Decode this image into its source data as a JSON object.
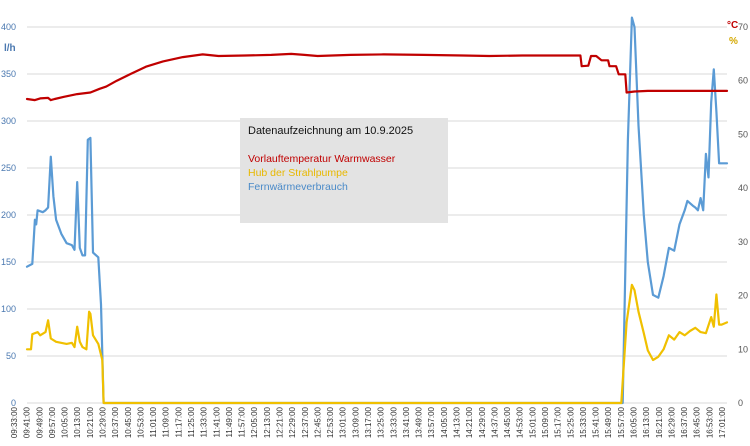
{
  "chart_data": {
    "type": "line",
    "title": "Datenaufzeichnung am 10.9.2025",
    "y_left": {
      "unit": "l/h",
      "range": [
        0,
        400
      ],
      "ticks": [
        0,
        50,
        100,
        150,
        200,
        250,
        300,
        350,
        400
      ]
    },
    "y_right": {
      "units": [
        "°C",
        "%"
      ],
      "range": [
        0,
        70
      ],
      "ticks": [
        0,
        10,
        20,
        30,
        40,
        50,
        60,
        70
      ]
    },
    "x_labels": [
      "09:33:00",
      "09:41:00",
      "09:49:00",
      "09:57:00",
      "10:05:00",
      "10:13:00",
      "10:21:00",
      "10:29:00",
      "10:37:00",
      "10:45:00",
      "10:53:00",
      "11:01:00",
      "11:09:00",
      "11:17:00",
      "11:25:00",
      "11:33:00",
      "11:41:00",
      "11:49:00",
      "11:57:00",
      "12:05:00",
      "12:13:00",
      "12:21:00",
      "12:29:00",
      "12:37:00",
      "12:45:00",
      "12:53:00",
      "13:01:00",
      "13:09:00",
      "13:17:00",
      "13:25:00",
      "13:33:00",
      "13:41:00",
      "13:49:00",
      "13:57:00",
      "14:05:00",
      "14:13:00",
      "14:21:00",
      "14:29:00",
      "14:37:00",
      "14:45:00",
      "14:53:00",
      "15:01:00",
      "15:09:00",
      "15:17:00",
      "15:25:00",
      "15:33:00",
      "15:41:00",
      "15:49:00",
      "15:57:00",
      "16:05:00",
      "16:13:00",
      "16:21:00",
      "16:29:00",
      "16:37:00",
      "16:45:00",
      "16:53:00",
      "17:01:00"
    ],
    "grid": "horizontal",
    "legend_position": "center-left box",
    "series": [
      {
        "name": "Vorlauftemperatur Warmwasser",
        "axis": "right",
        "color": "#c00000",
        "points": [
          [
            0,
            56.6
          ],
          [
            6,
            56.4
          ],
          [
            10,
            56.7
          ],
          [
            16,
            56.8
          ],
          [
            18,
            56.4
          ],
          [
            21,
            56.6
          ],
          [
            28,
            57.0
          ],
          [
            38,
            57.5
          ],
          [
            48,
            57.8
          ],
          [
            55,
            58.5
          ],
          [
            60,
            58.9
          ],
          [
            68,
            60.0
          ],
          [
            78,
            61.2
          ],
          [
            90,
            62.6
          ],
          [
            103,
            63.6
          ],
          [
            118,
            64.4
          ],
          [
            133,
            64.9
          ],
          [
            145,
            64.6
          ],
          [
            165,
            64.7
          ],
          [
            185,
            64.8
          ],
          [
            200,
            65.0
          ],
          [
            210,
            64.8
          ],
          [
            220,
            64.6
          ],
          [
            245,
            64.8
          ],
          [
            270,
            64.9
          ],
          [
            300,
            64.8
          ],
          [
            330,
            64.7
          ],
          [
            350,
            64.6
          ],
          [
            375,
            64.7
          ],
          [
            400,
            64.7
          ],
          [
            419,
            64.7
          ],
          [
            420,
            62.7
          ],
          [
            425,
            62.8
          ],
          [
            427,
            64.6
          ],
          [
            431,
            64.6
          ],
          [
            435,
            63.8
          ],
          [
            440,
            63.8
          ],
          [
            441,
            62.7
          ],
          [
            446,
            62.7
          ],
          [
            448,
            61.2
          ],
          [
            453,
            61.2
          ],
          [
            454,
            57.8
          ],
          [
            460,
            58.0
          ],
          [
            470,
            58.1
          ],
          [
            530,
            58.1
          ]
        ]
      },
      {
        "name": "Hub der Strahlpumpe",
        "axis": "right",
        "color": "#f0c000",
        "points": [
          [
            0,
            10.0
          ],
          [
            3,
            10.0
          ],
          [
            4,
            12.8
          ],
          [
            8,
            13.2
          ],
          [
            10,
            12.6
          ],
          [
            14,
            13.2
          ],
          [
            16,
            15.4
          ],
          [
            18,
            12.0
          ],
          [
            22,
            11.4
          ],
          [
            30,
            11.0
          ],
          [
            34,
            11.2
          ],
          [
            36,
            10.4
          ],
          [
            38,
            14.2
          ],
          [
            40,
            11.4
          ],
          [
            42,
            10.4
          ],
          [
            45,
            10.0
          ],
          [
            47,
            17.0
          ],
          [
            48,
            16.6
          ],
          [
            50,
            12.6
          ],
          [
            54,
            11.0
          ],
          [
            56,
            9.0
          ],
          [
            57,
            8.0
          ],
          [
            58,
            0
          ],
          [
            450,
            0
          ],
          [
            454,
            15.0
          ],
          [
            458,
            22.0
          ],
          [
            460,
            21.0
          ],
          [
            463,
            17.0
          ],
          [
            467,
            13.0
          ],
          [
            470,
            9.8
          ],
          [
            474,
            8.0
          ],
          [
            478,
            8.6
          ],
          [
            482,
            10.0
          ],
          [
            486,
            12.6
          ],
          [
            490,
            11.8
          ],
          [
            494,
            13.2
          ],
          [
            498,
            12.6
          ],
          [
            502,
            13.4
          ],
          [
            506,
            14.0
          ],
          [
            510,
            13.2
          ],
          [
            514,
            13.0
          ],
          [
            518,
            16.0
          ],
          [
            520,
            14.2
          ],
          [
            522,
            20.2
          ],
          [
            524,
            14.6
          ],
          [
            526,
            14.6
          ],
          [
            530,
            15.0
          ]
        ]
      },
      {
        "name": "Fernwärmeverbrauch",
        "axis": "left",
        "color": "#5b9bd5",
        "points": [
          [
            0,
            145
          ],
          [
            4,
            148
          ],
          [
            6,
            195
          ],
          [
            7,
            190
          ],
          [
            8,
            205
          ],
          [
            12,
            203
          ],
          [
            14,
            205
          ],
          [
            16,
            208
          ],
          [
            18,
            262
          ],
          [
            20,
            220
          ],
          [
            22,
            195
          ],
          [
            26,
            180
          ],
          [
            30,
            170
          ],
          [
            34,
            168
          ],
          [
            36,
            163
          ],
          [
            38,
            235
          ],
          [
            40,
            165
          ],
          [
            42,
            157
          ],
          [
            44,
            157
          ],
          [
            46,
            280
          ],
          [
            48,
            282
          ],
          [
            50,
            160
          ],
          [
            54,
            155
          ],
          [
            56,
            105
          ],
          [
            58,
            0
          ],
          [
            451,
            0
          ],
          [
            455,
            280
          ],
          [
            458,
            410
          ],
          [
            460,
            400
          ],
          [
            463,
            295
          ],
          [
            467,
            200
          ],
          [
            470,
            150
          ],
          [
            474,
            115
          ],
          [
            478,
            112
          ],
          [
            482,
            135
          ],
          [
            486,
            165
          ],
          [
            490,
            162
          ],
          [
            494,
            190
          ],
          [
            498,
            205
          ],
          [
            500,
            215
          ],
          [
            504,
            210
          ],
          [
            506,
            208
          ],
          [
            508,
            205
          ],
          [
            510,
            218
          ],
          [
            512,
            205
          ],
          [
            514,
            265
          ],
          [
            516,
            240
          ],
          [
            518,
            320
          ],
          [
            520,
            355
          ],
          [
            522,
            310
          ],
          [
            524,
            255
          ],
          [
            530,
            255
          ]
        ]
      }
    ]
  }
}
